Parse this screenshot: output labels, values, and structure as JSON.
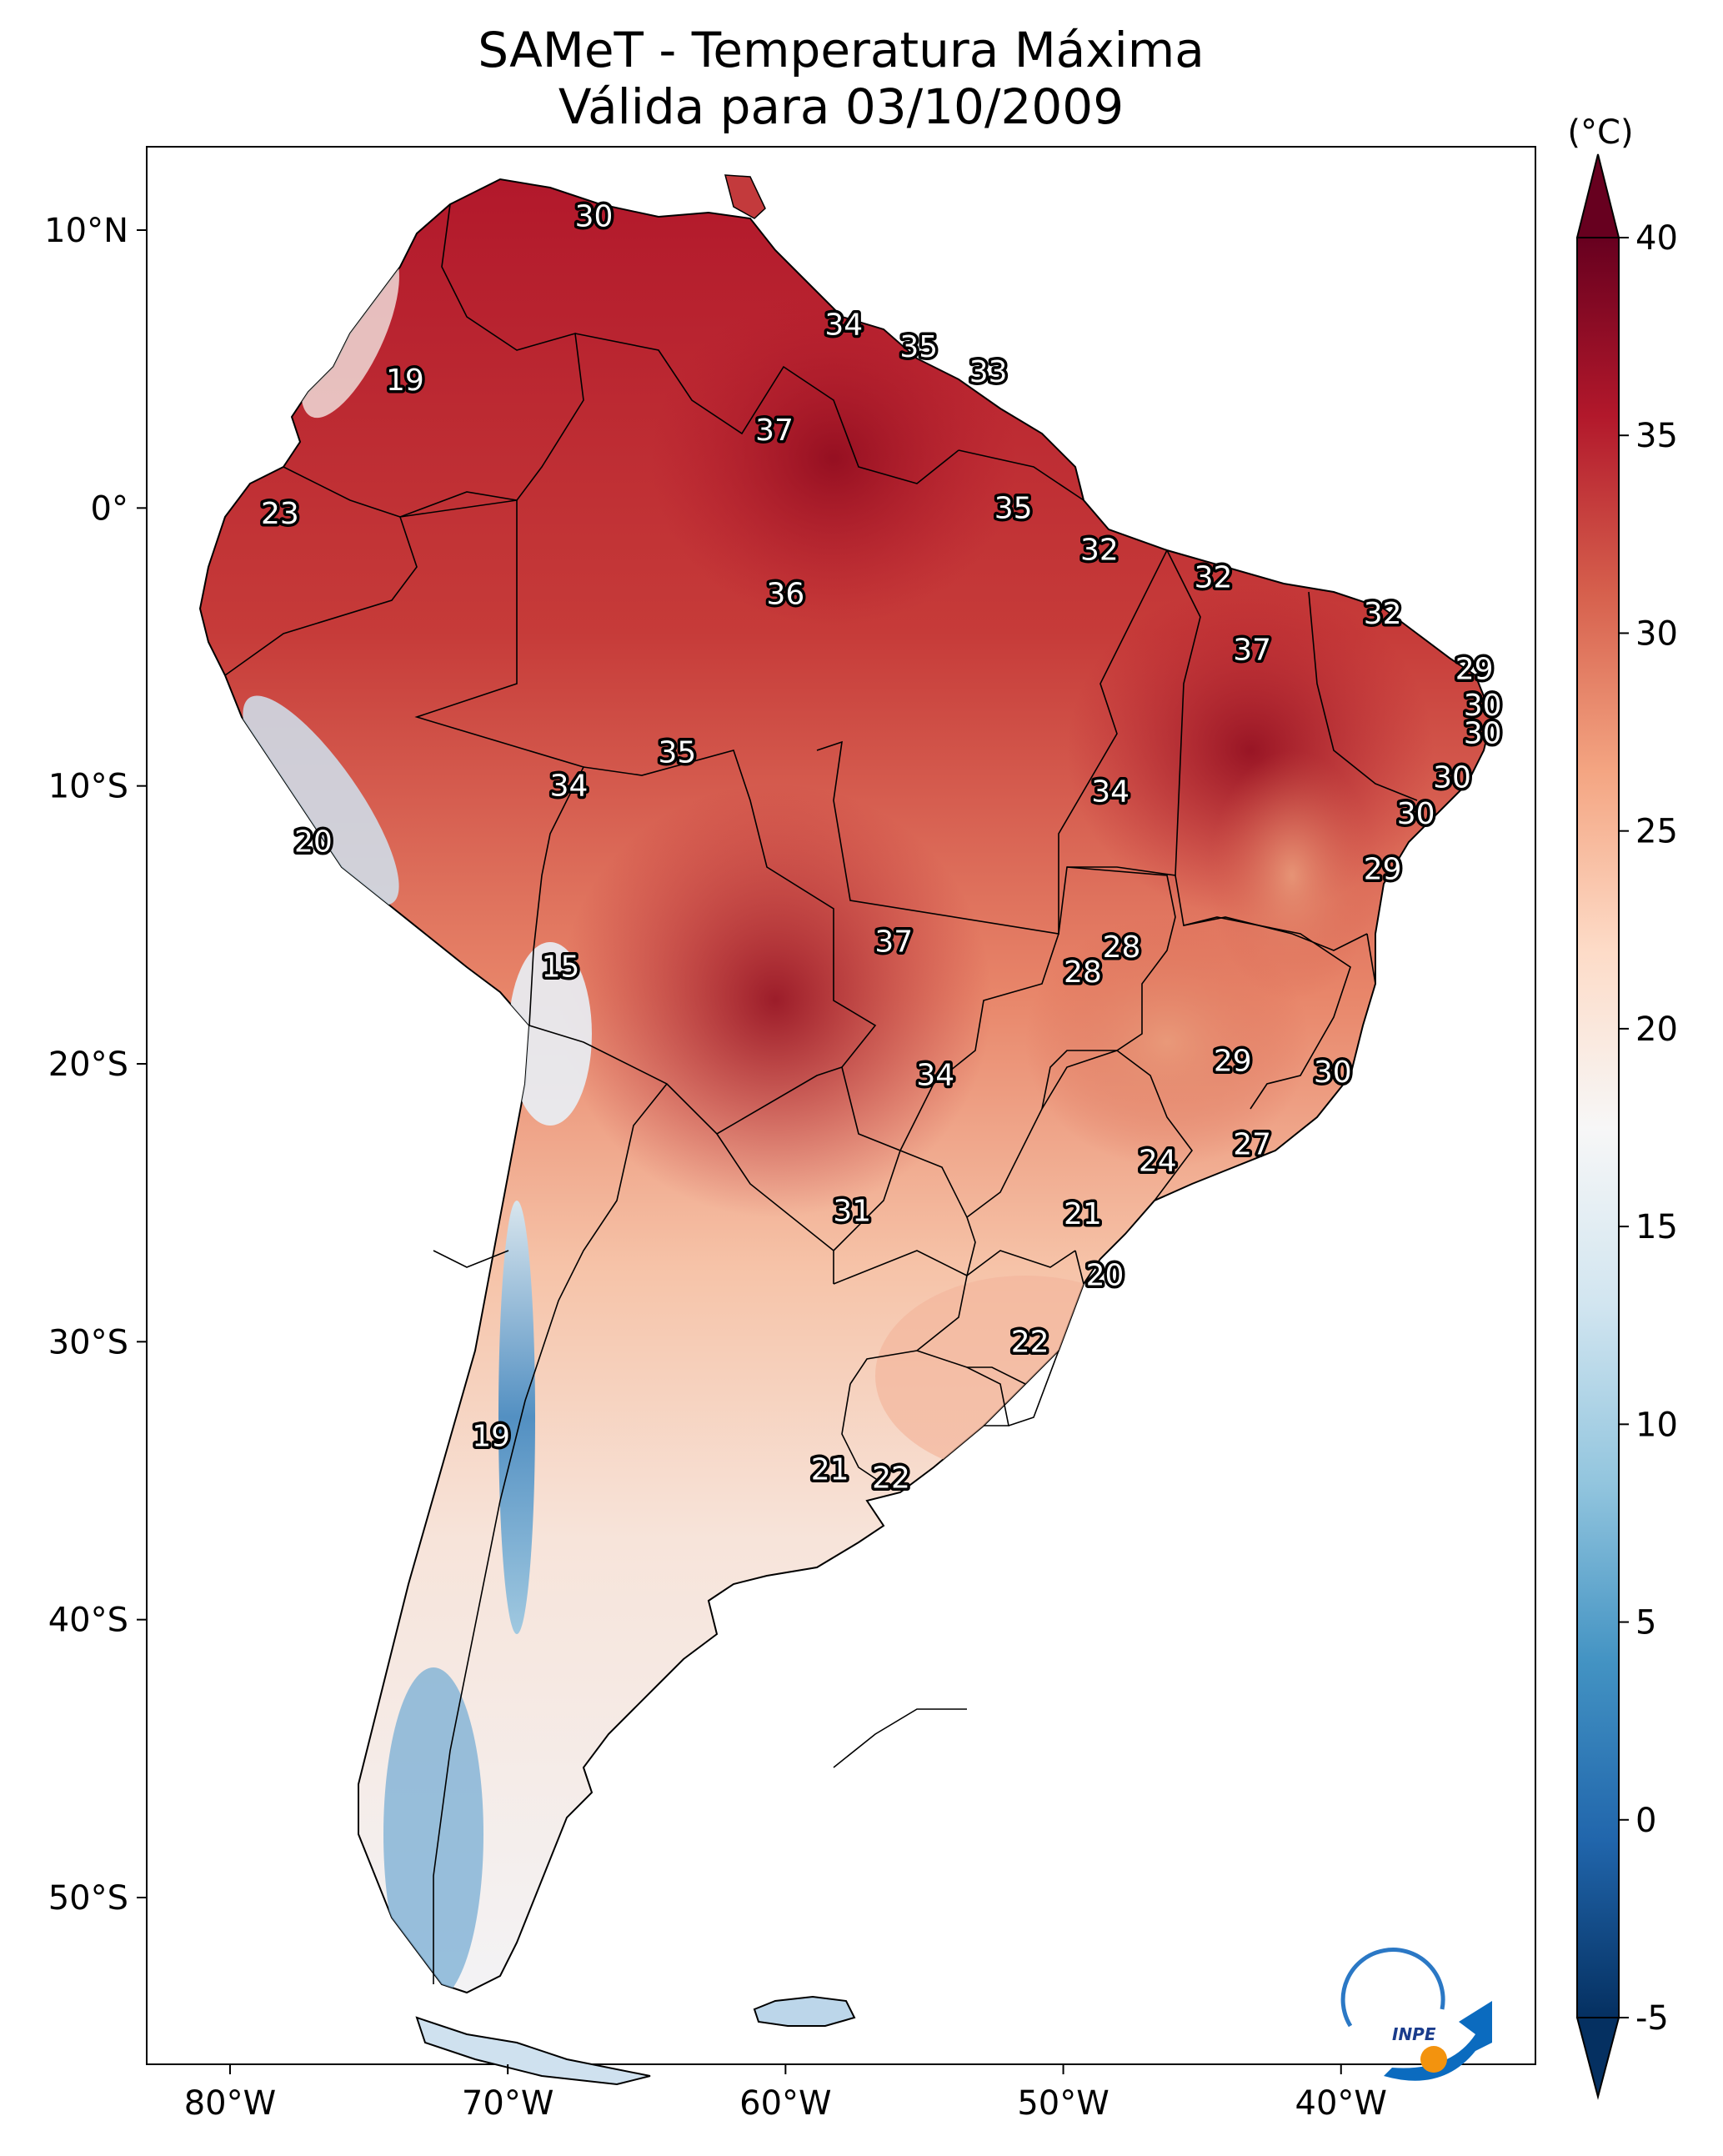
{
  "title": {
    "line1": "SAMeT - Temperatura Máxima",
    "line2": "Válida para 03/10/2009"
  },
  "colorbar": {
    "unit": "(°C)",
    "ticks": [
      40,
      35,
      30,
      25,
      20,
      15,
      10,
      5,
      0,
      -5
    ],
    "tick_labels": [
      "40",
      "35",
      "30",
      "25",
      "20",
      "15",
      "10",
      "5",
      "0",
      "-5"
    ],
    "range": [
      -5,
      40
    ],
    "extend": "both",
    "colormap": "RdBu_r",
    "colors": [
      "#053061",
      "#2166ac",
      "#4393c3",
      "#92c5de",
      "#d1e5f0",
      "#f7f7f7",
      "#fddbc7",
      "#f4a582",
      "#d6604d",
      "#b2182b",
      "#67001f"
    ]
  },
  "axes": {
    "lat_labels": [
      "10°N",
      "0°",
      "10°S",
      "20°S",
      "30°S",
      "40°S",
      "50°S"
    ],
    "lat_values": [
      10,
      0,
      -10,
      -20,
      -30,
      -40,
      -50
    ],
    "lon_labels": [
      "80°W",
      "70°W",
      "60°W",
      "50°W",
      "40°W"
    ],
    "lon_values": [
      -80,
      -70,
      -60,
      -50,
      -40
    ],
    "lon_range": [
      -83,
      -33
    ],
    "lat_range": [
      -56,
      13
    ]
  },
  "logo": {
    "text": "INPE"
  },
  "colors": {
    "land_hot": "#b2182b",
    "ocean": "#ffffff",
    "border": "#000000"
  },
  "chart_data": {
    "type": "heatmap",
    "variable": "Temperatura Máxima",
    "unit": "°C",
    "labels": [
      {
        "lon": -66.9,
        "lat": 10.5,
        "value": 30
      },
      {
        "lon": -57.9,
        "lat": 6.6,
        "value": 34
      },
      {
        "lon": -55.2,
        "lat": 5.8,
        "value": 35
      },
      {
        "lon": -52.7,
        "lat": 4.9,
        "value": 33
      },
      {
        "lon": -73.7,
        "lat": 4.6,
        "value": 19
      },
      {
        "lon": -60.4,
        "lat": 2.8,
        "value": 37
      },
      {
        "lon": -51.8,
        "lat": 0.0,
        "value": 35
      },
      {
        "lon": -78.2,
        "lat": -0.2,
        "value": 23
      },
      {
        "lon": -48.7,
        "lat": -1.5,
        "value": 32
      },
      {
        "lon": -44.6,
        "lat": -2.5,
        "value": 32
      },
      {
        "lon": -60.0,
        "lat": -3.1,
        "value": 36
      },
      {
        "lon": -38.5,
        "lat": -3.8,
        "value": 32
      },
      {
        "lon": -43.2,
        "lat": -5.1,
        "value": 37
      },
      {
        "lon": -35.2,
        "lat": -5.8,
        "value": 29
      },
      {
        "lon": -34.9,
        "lat": -7.1,
        "value": 30
      },
      {
        "lon": -34.9,
        "lat": -8.1,
        "value": 30
      },
      {
        "lon": -63.9,
        "lat": -8.8,
        "value": 35
      },
      {
        "lon": -36.0,
        "lat": -9.7,
        "value": 30
      },
      {
        "lon": -67.8,
        "lat": -10.0,
        "value": 34
      },
      {
        "lon": -48.3,
        "lat": -10.2,
        "value": 34
      },
      {
        "lon": -37.3,
        "lat": -11.0,
        "value": 30
      },
      {
        "lon": -77.0,
        "lat": -12.0,
        "value": 20
      },
      {
        "lon": -38.5,
        "lat": -13.0,
        "value": 29
      },
      {
        "lon": -56.1,
        "lat": -15.6,
        "value": 37
      },
      {
        "lon": -47.9,
        "lat": -15.8,
        "value": 28
      },
      {
        "lon": -68.1,
        "lat": -16.5,
        "value": 15
      },
      {
        "lon": -49.3,
        "lat": -16.7,
        "value": 28
      },
      {
        "lon": -43.9,
        "lat": -19.9,
        "value": 29
      },
      {
        "lon": -40.3,
        "lat": -20.3,
        "value": 30
      },
      {
        "lon": -54.6,
        "lat": -20.4,
        "value": 34
      },
      {
        "lon": -43.2,
        "lat": -22.9,
        "value": 27
      },
      {
        "lon": -46.6,
        "lat": -23.5,
        "value": 24
      },
      {
        "lon": -57.6,
        "lat": -25.3,
        "value": 31
      },
      {
        "lon": -49.3,
        "lat": -25.4,
        "value": 21
      },
      {
        "lon": -48.5,
        "lat": -27.6,
        "value": 20
      },
      {
        "lon": -51.2,
        "lat": -30.0,
        "value": 22
      },
      {
        "lon": -70.6,
        "lat": -33.4,
        "value": 19
      },
      {
        "lon": -58.4,
        "lat": -34.6,
        "value": 21
      },
      {
        "lon": -56.2,
        "lat": -34.9,
        "value": 22
      }
    ]
  }
}
